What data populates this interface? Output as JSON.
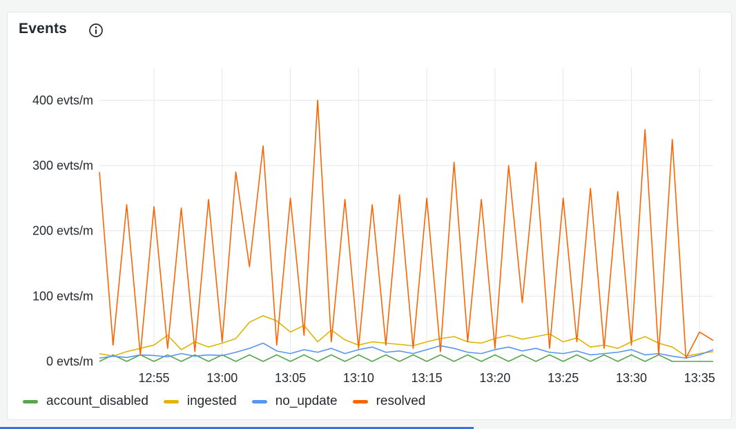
{
  "panel": {
    "title": "Events",
    "info_icon": "info-circle-icon"
  },
  "chart_data": {
    "type": "line",
    "title": "Events",
    "y_ticks": [
      "0 evts/m",
      "100 evts/m",
      "200 evts/m",
      "300 evts/m",
      "400 evts/m"
    ],
    "ylim": [
      0,
      450
    ],
    "xlim": [
      "12:51",
      "13:36"
    ],
    "x_ticks": [
      "12:55",
      "13:00",
      "13:05",
      "13:10",
      "13:15",
      "13:20",
      "13:25",
      "13:30",
      "13:35"
    ],
    "grid": true,
    "legend_position": "bottom-left",
    "series": [
      {
        "name": "account_disabled",
        "color": "#56a64b",
        "points": [
          [
            "12:51",
            0
          ],
          [
            "12:52",
            10
          ],
          [
            "12:53",
            0
          ],
          [
            "12:54",
            10
          ],
          [
            "12:55",
            0
          ],
          [
            "12:56",
            10
          ],
          [
            "12:57",
            0
          ],
          [
            "12:58",
            10
          ],
          [
            "12:59",
            0
          ],
          [
            "13:00",
            10
          ],
          [
            "13:01",
            0
          ],
          [
            "13:02",
            10
          ],
          [
            "13:03",
            0
          ],
          [
            "13:04",
            10
          ],
          [
            "13:05",
            0
          ],
          [
            "13:06",
            10
          ],
          [
            "13:07",
            0
          ],
          [
            "13:08",
            10
          ],
          [
            "13:09",
            0
          ],
          [
            "13:10",
            10
          ],
          [
            "13:11",
            0
          ],
          [
            "13:12",
            10
          ],
          [
            "13:13",
            0
          ],
          [
            "13:14",
            10
          ],
          [
            "13:15",
            0
          ],
          [
            "13:16",
            10
          ],
          [
            "13:17",
            0
          ],
          [
            "13:18",
            10
          ],
          [
            "13:19",
            0
          ],
          [
            "13:20",
            10
          ],
          [
            "13:21",
            0
          ],
          [
            "13:22",
            10
          ],
          [
            "13:23",
            0
          ],
          [
            "13:24",
            10
          ],
          [
            "13:25",
            0
          ],
          [
            "13:26",
            10
          ],
          [
            "13:27",
            0
          ],
          [
            "13:28",
            10
          ],
          [
            "13:29",
            0
          ],
          [
            "13:30",
            10
          ],
          [
            "13:31",
            0
          ],
          [
            "13:32",
            10
          ],
          [
            "13:33",
            0
          ],
          [
            "13:34",
            0
          ],
          [
            "13:35",
            0
          ],
          [
            "13:36",
            0
          ]
        ]
      },
      {
        "name": "ingested",
        "color": "#e0b400",
        "points": [
          [
            "12:51",
            12
          ],
          [
            "12:52",
            8
          ],
          [
            "12:53",
            15
          ],
          [
            "12:54",
            20
          ],
          [
            "12:55",
            25
          ],
          [
            "12:56",
            40
          ],
          [
            "12:57",
            18
          ],
          [
            "12:58",
            30
          ],
          [
            "12:59",
            22
          ],
          [
            "13:00",
            28
          ],
          [
            "13:01",
            35
          ],
          [
            "13:02",
            60
          ],
          [
            "13:03",
            70
          ],
          [
            "13:04",
            62
          ],
          [
            "13:05",
            45
          ],
          [
            "13:06",
            55
          ],
          [
            "13:07",
            30
          ],
          [
            "13:08",
            48
          ],
          [
            "13:09",
            33
          ],
          [
            "13:10",
            25
          ],
          [
            "13:11",
            30
          ],
          [
            "13:12",
            28
          ],
          [
            "13:13",
            26
          ],
          [
            "13:14",
            24
          ],
          [
            "13:15",
            30
          ],
          [
            "13:16",
            35
          ],
          [
            "13:17",
            38
          ],
          [
            "13:18",
            30
          ],
          [
            "13:19",
            28
          ],
          [
            "13:20",
            35
          ],
          [
            "13:21",
            40
          ],
          [
            "13:22",
            34
          ],
          [
            "13:23",
            38
          ],
          [
            "13:24",
            42
          ],
          [
            "13:25",
            30
          ],
          [
            "13:26",
            36
          ],
          [
            "13:27",
            22
          ],
          [
            "13:28",
            25
          ],
          [
            "13:29",
            20
          ],
          [
            "13:30",
            30
          ],
          [
            "13:31",
            38
          ],
          [
            "13:32",
            28
          ],
          [
            "13:33",
            22
          ],
          [
            "13:34",
            8
          ],
          [
            "13:35",
            12
          ],
          [
            "13:36",
            15
          ]
        ]
      },
      {
        "name": "no_update",
        "color": "#5794f2",
        "points": [
          [
            "12:51",
            5
          ],
          [
            "12:52",
            8
          ],
          [
            "12:53",
            6
          ],
          [
            "12:54",
            10
          ],
          [
            "12:55",
            9
          ],
          [
            "12:56",
            7
          ],
          [
            "12:57",
            12
          ],
          [
            "12:58",
            8
          ],
          [
            "12:59",
            10
          ],
          [
            "13:00",
            9
          ],
          [
            "13:01",
            14
          ],
          [
            "13:02",
            20
          ],
          [
            "13:03",
            28
          ],
          [
            "13:04",
            16
          ],
          [
            "13:05",
            12
          ],
          [
            "13:06",
            18
          ],
          [
            "13:07",
            14
          ],
          [
            "13:08",
            20
          ],
          [
            "13:09",
            12
          ],
          [
            "13:10",
            18
          ],
          [
            "13:11",
            22
          ],
          [
            "13:12",
            14
          ],
          [
            "13:13",
            16
          ],
          [
            "13:14",
            12
          ],
          [
            "13:15",
            18
          ],
          [
            "13:16",
            24
          ],
          [
            "13:17",
            20
          ],
          [
            "13:18",
            14
          ],
          [
            "13:19",
            12
          ],
          [
            "13:20",
            18
          ],
          [
            "13:21",
            22
          ],
          [
            "13:22",
            16
          ],
          [
            "13:23",
            20
          ],
          [
            "13:24",
            14
          ],
          [
            "13:25",
            12
          ],
          [
            "13:26",
            16
          ],
          [
            "13:27",
            10
          ],
          [
            "13:28",
            12
          ],
          [
            "13:29",
            14
          ],
          [
            "13:30",
            18
          ],
          [
            "13:31",
            10
          ],
          [
            "13:32",
            12
          ],
          [
            "13:33",
            8
          ],
          [
            "13:34",
            5
          ],
          [
            "13:35",
            10
          ],
          [
            "13:36",
            18
          ]
        ]
      },
      {
        "name": "resolved",
        "color": "#fa6400",
        "points": [
          [
            "12:51",
            290
          ],
          [
            "12:52",
            25
          ],
          [
            "12:53",
            240
          ],
          [
            "12:54",
            10
          ],
          [
            "12:55",
            237
          ],
          [
            "12:56",
            20
          ],
          [
            "12:57",
            235
          ],
          [
            "12:58",
            15
          ],
          [
            "12:59",
            248
          ],
          [
            "13:00",
            30
          ],
          [
            "13:01",
            290
          ],
          [
            "13:02",
            145
          ],
          [
            "13:03",
            330
          ],
          [
            "13:04",
            25
          ],
          [
            "13:05",
            250
          ],
          [
            "13:06",
            40
          ],
          [
            "13:07",
            400
          ],
          [
            "13:08",
            30
          ],
          [
            "13:09",
            248
          ],
          [
            "13:10",
            20
          ],
          [
            "13:11",
            240
          ],
          [
            "13:12",
            25
          ],
          [
            "13:13",
            255
          ],
          [
            "13:14",
            20
          ],
          [
            "13:15",
            250
          ],
          [
            "13:16",
            15
          ],
          [
            "13:17",
            305
          ],
          [
            "13:18",
            30
          ],
          [
            "13:19",
            248
          ],
          [
            "13:20",
            20
          ],
          [
            "13:21",
            300
          ],
          [
            "13:22",
            90
          ],
          [
            "13:23",
            305
          ],
          [
            "13:24",
            20
          ],
          [
            "13:25",
            250
          ],
          [
            "13:26",
            30
          ],
          [
            "13:27",
            265
          ],
          [
            "13:28",
            20
          ],
          [
            "13:29",
            260
          ],
          [
            "13:30",
            25
          ],
          [
            "13:31",
            355
          ],
          [
            "13:32",
            10
          ],
          [
            "13:33",
            340
          ],
          [
            "13:34",
            5
          ],
          [
            "13:35",
            45
          ],
          [
            "13:36",
            32
          ]
        ]
      }
    ]
  }
}
